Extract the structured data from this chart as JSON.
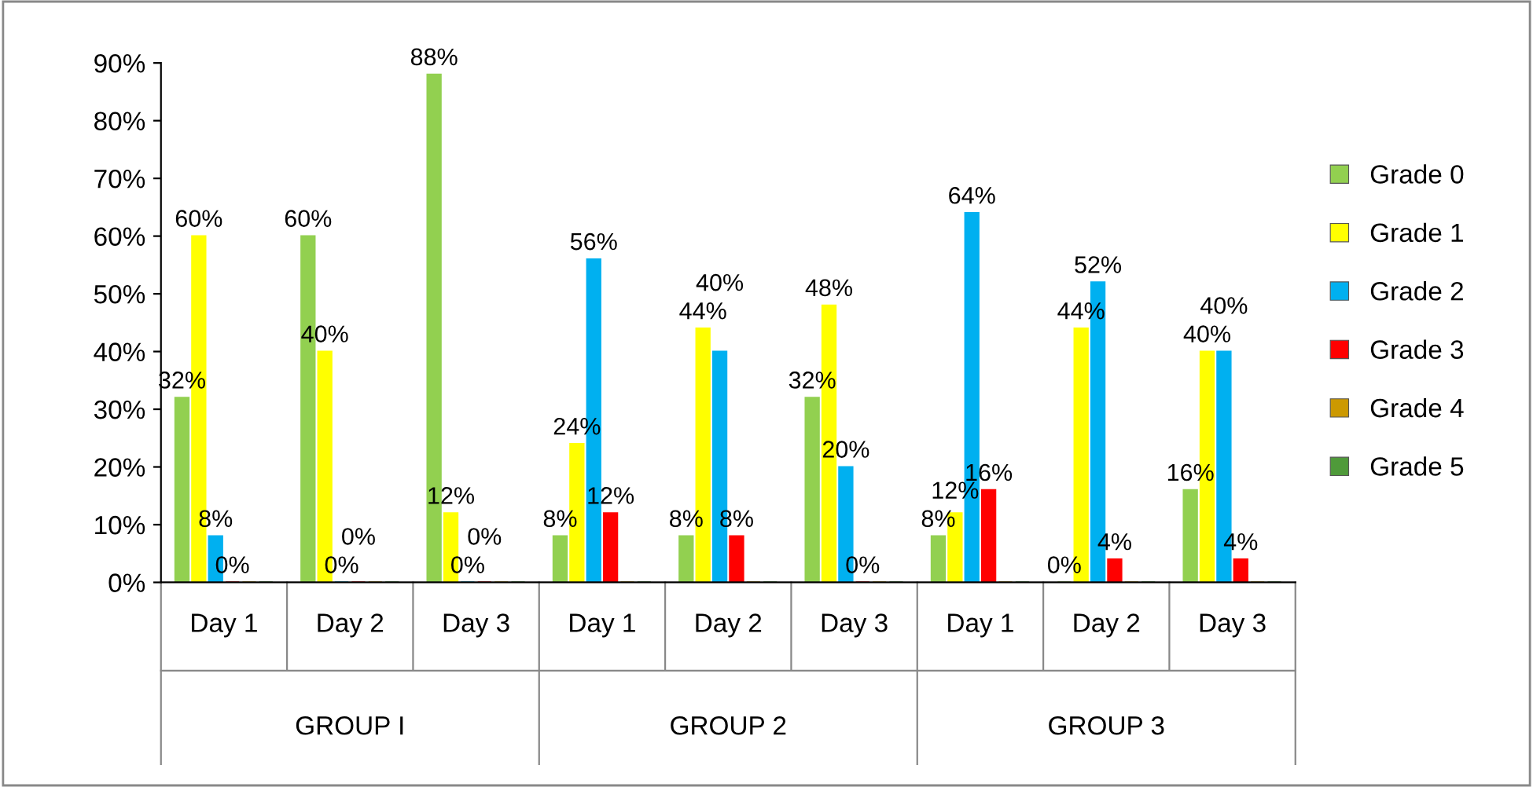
{
  "chart_data": {
    "type": "bar",
    "categories": [
      "Day 1",
      "Day 2",
      "Day 3",
      "Day 1",
      "Day 2",
      "Day 3",
      "Day 1",
      "Day 2",
      "Day 3"
    ],
    "series": [
      {
        "name": "Grade 0",
        "color": "#92d050",
        "values": [
          32,
          60,
          88,
          8,
          8,
          32,
          8,
          0,
          16
        ],
        "value_labels": [
          "32%",
          "60%",
          "88%",
          "8%",
          "8%",
          "32%",
          "8%",
          "0%",
          "16%"
        ]
      },
      {
        "name": "Grade 1",
        "color": "#ffff00",
        "values": [
          60,
          40,
          12,
          24,
          44,
          48,
          12,
          44,
          40
        ],
        "value_labels": [
          "60%",
          "40%",
          "12%",
          "24%",
          "44%",
          "48%",
          "12%",
          "44%",
          "40%"
        ]
      },
      {
        "name": "Grade 2",
        "color": "#00b0f0",
        "values": [
          8,
          0,
          0,
          56,
          40,
          20,
          64,
          52,
          40
        ],
        "value_labels": [
          "8%",
          "0%",
          "0%",
          "56%",
          "40%",
          "20%",
          "64%",
          "52%",
          "40%"
        ]
      },
      {
        "name": "Grade 3",
        "color": "#ff0000",
        "values": [
          0,
          0,
          0,
          12,
          8,
          0,
          16,
          4,
          4
        ],
        "value_labels": [
          "0%",
          "0%",
          "0%",
          "12%",
          "8%",
          "0%",
          "16%",
          "4%",
          "4%"
        ]
      },
      {
        "name": "Grade 4",
        "color": "#cc9900",
        "values": [
          0,
          0,
          0,
          0,
          0,
          0,
          0,
          0,
          0
        ]
      },
      {
        "name": "Grade 5",
        "color": "#4f9a3a",
        "values": [
          0,
          0,
          0,
          0,
          0,
          0,
          0,
          0,
          0
        ]
      }
    ],
    "annotations": [
      "GROUP I",
      "GROUP 2",
      "GROUP 3"
    ],
    "ylim": [
      0,
      90
    ],
    "yticks": [
      {
        "value": 0,
        "label": "0%"
      },
      {
        "value": 10,
        "label": "10%"
      },
      {
        "value": 20,
        "label": "20%"
      },
      {
        "value": 30,
        "label": "30%"
      },
      {
        "value": 40,
        "label": "40%"
      },
      {
        "value": 50,
        "label": "50%"
      },
      {
        "value": 60,
        "label": "60%"
      },
      {
        "value": 70,
        "label": "70%"
      },
      {
        "value": 80,
        "label": "80%"
      },
      {
        "value": 90,
        "label": "90%"
      }
    ],
    "grid": false,
    "legend": "right"
  }
}
